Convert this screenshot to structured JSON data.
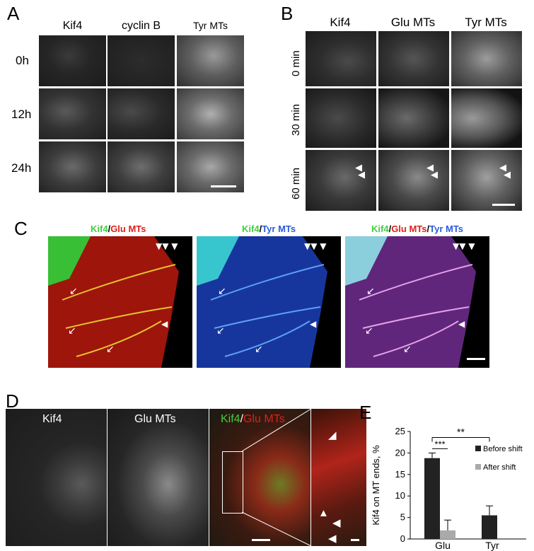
{
  "panelA": {
    "letter": "A",
    "columns": [
      "Kif4",
      "cyclin B",
      "Tyr MTs"
    ],
    "rows": [
      "0h",
      "12h",
      "24h"
    ]
  },
  "panelB": {
    "letter": "B",
    "columns": [
      "Kif4",
      "Glu MTs",
      "Tyr MTs"
    ],
    "rows": [
      "0 min",
      "30 min",
      "60 min"
    ]
  },
  "panelC": {
    "letter": "C",
    "images": [
      {
        "parts": [
          {
            "text": "Kif4",
            "color": "#3fcf3f"
          },
          {
            "text": "/",
            "color": "#000000"
          },
          {
            "text": "Glu MTs",
            "color": "#e0201a"
          }
        ]
      },
      {
        "parts": [
          {
            "text": "Kif4",
            "color": "#3fcf3f"
          },
          {
            "text": "/",
            "color": "#000000"
          },
          {
            "text": "Tyr MTs",
            "color": "#2b5bd8"
          }
        ]
      },
      {
        "parts": [
          {
            "text": "Kif4",
            "color": "#3fcf3f"
          },
          {
            "text": "/",
            "color": "#000000"
          },
          {
            "text": "Glu MTs",
            "color": "#e0201a"
          },
          {
            "text": "/",
            "color": "#000000"
          },
          {
            "text": "Tyr MTs",
            "color": "#2b5bd8"
          }
        ]
      }
    ]
  },
  "panelD": {
    "letter": "D",
    "labels": [
      "Kif4",
      "Glu MTs"
    ],
    "merge_kif4": "Kif4",
    "merge_slash": "/",
    "merge_glu": "Glu MTs"
  },
  "panelE": {
    "letter": "E"
  },
  "chart_data": {
    "type": "bar",
    "categories": [
      "Glu",
      "Tyr"
    ],
    "series": [
      {
        "name": "Before shift",
        "values": [
          18.8,
          5.5
        ],
        "errors": [
          1.2,
          2.2
        ],
        "color": "#222222"
      },
      {
        "name": "After shift",
        "values": [
          2.0,
          null
        ],
        "errors": [
          2.4,
          null
        ],
        "color": "#aaaaaa"
      }
    ],
    "ylabel": "Kif4 on MT ends, %",
    "ylim": [
      0,
      25
    ],
    "yticks": [
      0,
      5,
      10,
      15,
      20,
      25
    ],
    "legend_position": "right",
    "annotations": [
      {
        "text": "***",
        "between": "Glu Before shift vs Glu After shift"
      },
      {
        "text": "**",
        "between": "Glu Before shift vs Tyr Before shift"
      }
    ]
  }
}
